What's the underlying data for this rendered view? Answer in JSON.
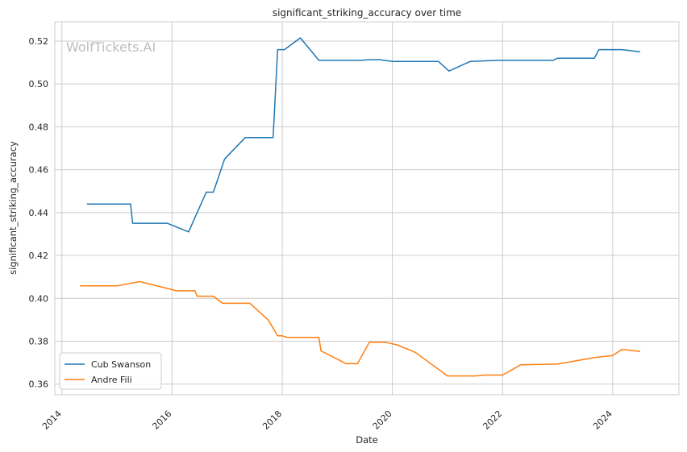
{
  "chart_data": {
    "type": "line",
    "title": "significant_striking_accuracy over time",
    "xlabel": "Date",
    "ylabel": "significant_striking_accuracy",
    "watermark": "WolfTickets.AI",
    "xlim": [
      "2013-11-15",
      "2025-03-15"
    ],
    "ylim": [
      0.355,
      0.529
    ],
    "xticks": [
      "2014",
      "2016",
      "2018",
      "2020",
      "2022",
      "2024"
    ],
    "yticks": [
      "0.36",
      "0.38",
      "0.40",
      "0.42",
      "0.44",
      "0.46",
      "0.48",
      "0.50",
      "0.52"
    ],
    "grid": true,
    "legend_position": "lower-left",
    "series": [
      {
        "name": "Cub Swanson",
        "color": "#1f77b4",
        "points": [
          [
            "2014-06-15",
            0.444
          ],
          [
            "2015-04-01",
            0.444
          ],
          [
            "2015-04-15",
            0.435
          ],
          [
            "2015-12-01",
            0.435
          ],
          [
            "2016-04-20",
            0.431
          ],
          [
            "2016-08-15",
            0.4495
          ],
          [
            "2016-10-01",
            0.4495
          ],
          [
            "2016-12-15",
            0.465
          ],
          [
            "2017-05-01",
            0.475
          ],
          [
            "2017-11-01",
            0.475
          ],
          [
            "2017-12-01",
            0.516
          ],
          [
            "2018-01-15",
            0.516
          ],
          [
            "2018-05-01",
            0.5215
          ],
          [
            "2018-09-01",
            0.511
          ],
          [
            "2019-06-01",
            0.511
          ],
          [
            "2019-08-01",
            0.5113
          ],
          [
            "2019-10-10",
            0.5113
          ],
          [
            "2020-01-01",
            0.5105
          ],
          [
            "2020-11-01",
            0.5105
          ],
          [
            "2021-01-10",
            0.506
          ],
          [
            "2021-06-01",
            0.5105
          ],
          [
            "2021-12-01",
            0.511
          ],
          [
            "2022-12-01",
            0.511
          ],
          [
            "2023-01-01",
            0.512
          ],
          [
            "2023-09-01",
            0.512
          ],
          [
            "2023-10-01",
            0.516
          ],
          [
            "2024-03-01",
            0.516
          ],
          [
            "2024-07-01",
            0.515
          ]
        ]
      },
      {
        "name": "Andre Fili",
        "color": "#ff7f0e",
        "points": [
          [
            "2014-05-01",
            0.4058
          ],
          [
            "2015-01-01",
            0.4058
          ],
          [
            "2015-06-01",
            0.4078
          ],
          [
            "2016-02-01",
            0.4035
          ],
          [
            "2016-06-01",
            0.4035
          ],
          [
            "2016-06-15",
            0.401
          ],
          [
            "2016-10-01",
            0.401
          ],
          [
            "2016-12-01",
            0.3977
          ],
          [
            "2017-06-01",
            0.3977
          ],
          [
            "2017-10-01",
            0.3898
          ],
          [
            "2017-12-01",
            0.3825
          ],
          [
            "2018-01-01",
            0.3825
          ],
          [
            "2018-02-01",
            0.3818
          ],
          [
            "2018-09-01",
            0.3818
          ],
          [
            "2018-09-15",
            0.3755
          ],
          [
            "2019-03-01",
            0.3695
          ],
          [
            "2019-05-15",
            0.3695
          ],
          [
            "2019-08-01",
            0.3795
          ],
          [
            "2019-11-15",
            0.3795
          ],
          [
            "2020-02-01",
            0.3783
          ],
          [
            "2020-06-01",
            0.3748
          ],
          [
            "2021-01-01",
            0.3638
          ],
          [
            "2021-07-01",
            0.3638
          ],
          [
            "2021-09-01",
            0.3642
          ],
          [
            "2022-01-01",
            0.3642
          ],
          [
            "2022-05-01",
            0.369
          ],
          [
            "2023-01-01",
            0.3693
          ],
          [
            "2023-09-01",
            0.3724
          ],
          [
            "2024-01-01",
            0.3733
          ],
          [
            "2024-03-01",
            0.3762
          ],
          [
            "2024-07-01",
            0.3752
          ]
        ]
      }
    ]
  }
}
